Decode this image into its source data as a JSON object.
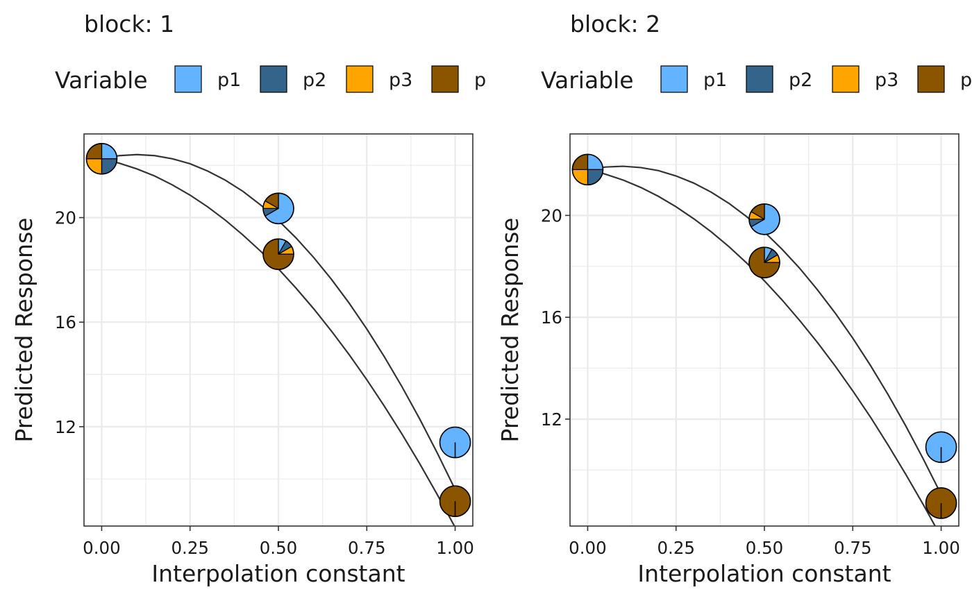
{
  "chart_data": [
    {
      "type": "line",
      "title": "block: 1",
      "xlabel": "Interpolation constant",
      "ylabel": "Predicted Response",
      "xlim": [
        -0.05,
        1.05
      ],
      "ylim": [
        8.2,
        23.2
      ],
      "x_ticks": [
        0.0,
        0.25,
        0.5,
        0.75,
        1.0
      ],
      "x_tick_labels": [
        "0.00",
        "0.25",
        "0.50",
        "0.75",
        "1.00"
      ],
      "y_ticks": [
        12,
        16,
        20
      ],
      "y_tick_labels": [
        "12",
        "16",
        "20"
      ],
      "grid": true,
      "legend": {
        "title": "Variable",
        "position": "top",
        "entries": [
          {
            "label": "p1",
            "color": "#63B3FF"
          },
          {
            "label": "p2",
            "color": "#35648A"
          },
          {
            "label": "p3",
            "color": "#FFA500"
          },
          {
            "label": "p",
            "color": "#8B5500"
          }
        ]
      },
      "series": [
        {
          "x": [
            0,
            0.05,
            0.1,
            0.15,
            0.2,
            0.25,
            0.3,
            0.35,
            0.4,
            0.45,
            0.5,
            0.55,
            0.6,
            0.65,
            0.7,
            0.75,
            0.8,
            0.85,
            0.9,
            0.95,
            1.0
          ],
          "y": [
            22.25,
            22.37,
            22.41,
            22.37,
            22.25,
            22.06,
            21.78,
            21.43,
            21.0,
            20.48,
            19.89,
            19.22,
            18.47,
            17.64,
            16.73,
            15.74,
            14.67,
            13.52,
            12.29,
            10.98,
            9.6
          ]
        },
        {
          "x": [
            0,
            0.05,
            0.1,
            0.15,
            0.2,
            0.25,
            0.3,
            0.35,
            0.4,
            0.45,
            0.5,
            0.55,
            0.6,
            0.65,
            0.7,
            0.75,
            0.8,
            0.85,
            0.9,
            0.95,
            1.0
          ],
          "y": [
            22.25,
            22.08,
            21.86,
            21.59,
            21.25,
            20.86,
            20.41,
            19.9,
            19.33,
            18.71,
            18.04,
            17.3,
            16.51,
            15.66,
            14.76,
            13.8,
            12.78,
            11.71,
            10.58,
            9.39,
            8.15
          ]
        }
      ],
      "pies": [
        {
          "x": 0,
          "y": 22.25,
          "values": [
            0.25,
            0.25,
            0.25,
            0.25
          ]
        },
        {
          "x": 0.5,
          "y": 20.35,
          "values": [
            0.667,
            0.083,
            0.083,
            0.167
          ]
        },
        {
          "x": 0.5,
          "y": 18.6,
          "values": [
            0.083,
            0.083,
            0.083,
            0.75
          ]
        },
        {
          "x": 1.0,
          "y": 11.4,
          "values": [
            1,
            0,
            0,
            0
          ]
        },
        {
          "x": 1.0,
          "y": 9.15,
          "values": [
            0,
            0,
            0,
            1
          ]
        }
      ]
    },
    {
      "type": "line",
      "title": "block: 2",
      "xlabel": "Interpolation constant",
      "ylabel": "Predicted Response",
      "xlim": [
        -0.05,
        1.05
      ],
      "ylim": [
        7.8,
        23.2
      ],
      "x_ticks": [
        0.0,
        0.25,
        0.5,
        0.75,
        1.0
      ],
      "x_tick_labels": [
        "0.00",
        "0.25",
        "0.50",
        "0.75",
        "1.00"
      ],
      "y_ticks": [
        12,
        16,
        20
      ],
      "y_tick_labels": [
        "12",
        "16",
        "20"
      ],
      "grid": true,
      "legend": {
        "title": "Variable",
        "position": "top",
        "entries": [
          {
            "label": "p1",
            "color": "#63B3FF"
          },
          {
            "label": "p2",
            "color": "#35648A"
          },
          {
            "label": "p3",
            "color": "#FFA500"
          },
          {
            "label": "p",
            "color": "#8B5500"
          }
        ]
      },
      "series": [
        {
          "x": [
            0,
            0.05,
            0.1,
            0.15,
            0.2,
            0.25,
            0.3,
            0.35,
            0.4,
            0.45,
            0.5,
            0.55,
            0.6,
            0.65,
            0.7,
            0.75,
            0.8,
            0.85,
            0.9,
            0.95,
            1.0
          ],
          "y": [
            21.8,
            21.9,
            21.93,
            21.88,
            21.76,
            21.55,
            21.27,
            20.91,
            20.47,
            19.95,
            19.35,
            18.67,
            17.92,
            17.08,
            16.17,
            15.18,
            14.11,
            12.96,
            11.73,
            10.42,
            9.04
          ]
        },
        {
          "x": [
            0,
            0.05,
            0.1,
            0.15,
            0.2,
            0.25,
            0.3,
            0.35,
            0.4,
            0.45,
            0.5,
            0.55,
            0.6,
            0.65,
            0.7,
            0.75,
            0.8,
            0.85,
            0.9,
            0.95,
            1.0
          ],
          "y": [
            21.8,
            21.62,
            21.39,
            21.1,
            20.75,
            20.34,
            19.87,
            19.35,
            18.77,
            18.13,
            17.43,
            16.68,
            15.87,
            15.01,
            14.09,
            13.11,
            12.08,
            10.98,
            9.83,
            8.63,
            7.37
          ]
        }
      ],
      "pies": [
        {
          "x": 0,
          "y": 21.8,
          "values": [
            0.25,
            0.25,
            0.25,
            0.25
          ]
        },
        {
          "x": 0.5,
          "y": 19.85,
          "values": [
            0.667,
            0.083,
            0.083,
            0.167
          ]
        },
        {
          "x": 0.5,
          "y": 18.15,
          "values": [
            0.083,
            0.083,
            0.083,
            0.75
          ]
        },
        {
          "x": 1.0,
          "y": 10.9,
          "values": [
            1,
            0,
            0,
            0
          ]
        },
        {
          "x": 1.0,
          "y": 8.7,
          "values": [
            0,
            0,
            0,
            1
          ]
        }
      ]
    }
  ]
}
